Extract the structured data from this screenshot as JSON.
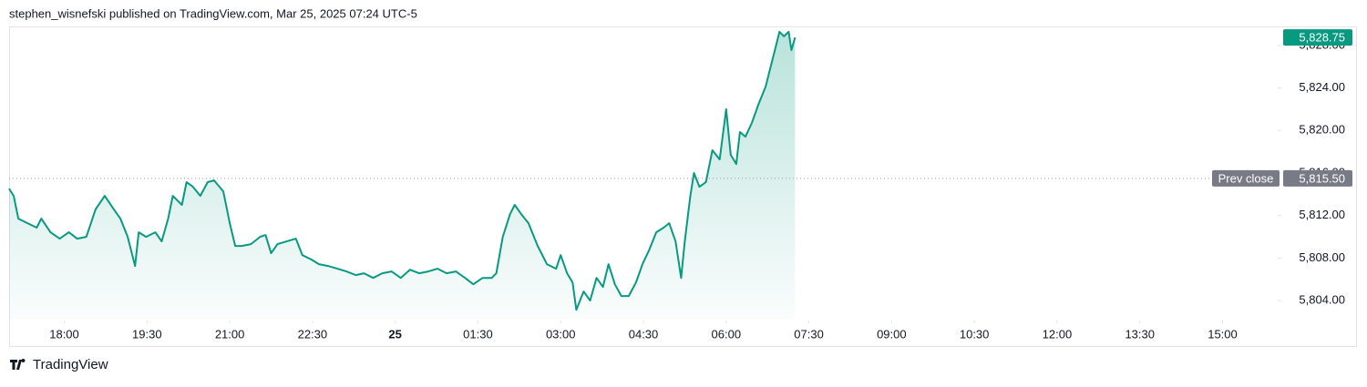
{
  "header": "stephen_wisnefski published on TradingView.com, Mar 25, 2025 07:24 UTC-5",
  "footer": "TradingView",
  "chart_data": {
    "type": "line",
    "color": "#089981",
    "grid": false,
    "xlim": [
      1020,
      2398
    ],
    "ylim": [
      5802.3,
      5829.7
    ],
    "xticks": [
      {
        "value": 1080,
        "label": "18:00"
      },
      {
        "value": 1170,
        "label": "19:30"
      },
      {
        "value": 1260,
        "label": "21:00"
      },
      {
        "value": 1350,
        "label": "22:30"
      },
      {
        "value": 1440,
        "label": "25",
        "bold": true
      },
      {
        "value": 1530,
        "label": "01:30"
      },
      {
        "value": 1620,
        "label": "03:00"
      },
      {
        "value": 1710,
        "label": "04:30"
      },
      {
        "value": 1800,
        "label": "06:00"
      },
      {
        "value": 1890,
        "label": "07:30"
      },
      {
        "value": 1980,
        "label": "09:00"
      },
      {
        "value": 2070,
        "label": "10:30"
      },
      {
        "value": 2160,
        "label": "12:00"
      },
      {
        "value": 2250,
        "label": "13:30"
      },
      {
        "value": 2340,
        "label": "15:00"
      }
    ],
    "yticks": [
      {
        "value": 5804,
        "label": "5,804.00"
      },
      {
        "value": 5808,
        "label": "5,808.00"
      },
      {
        "value": 5812,
        "label": "5,812.00"
      },
      {
        "value": 5816,
        "label": "5,816.00"
      },
      {
        "value": 5820,
        "label": "5,820.00"
      },
      {
        "value": 5824,
        "label": "5,824.00"
      },
      {
        "value": 5828,
        "label": "5,828.00"
      }
    ],
    "prev_close": {
      "name": "Prev close",
      "value": 5815.5,
      "label": "5,815.50"
    },
    "last_price": {
      "value": 5828.75,
      "label": "5,828.75"
    },
    "series": [
      {
        "x": [
          1020,
          1025,
          1030,
          1040,
          1050,
          1055,
          1065,
          1075,
          1085,
          1094,
          1104,
          1109,
          1114,
          1124,
          1134,
          1141,
          1149,
          1157,
          1161,
          1169,
          1179,
          1186,
          1193,
          1198,
          1208,
          1213,
          1220,
          1228,
          1236,
          1243,
          1253,
          1260,
          1266,
          1273,
          1283,
          1293,
          1299,
          1305,
          1312,
          1322,
          1332,
          1339,
          1349,
          1357,
          1367,
          1377,
          1387,
          1397,
          1406,
          1416,
          1426,
          1436,
          1446,
          1456,
          1466,
          1476,
          1486,
          1496,
          1506,
          1516,
          1525,
          1535,
          1545,
          1550,
          1557,
          1565,
          1570,
          1577,
          1585,
          1595,
          1605,
          1615,
          1620,
          1627,
          1633,
          1637,
          1645,
          1652,
          1659,
          1666,
          1672,
          1679,
          1686,
          1694,
          1702,
          1709,
          1716,
          1724,
          1732,
          1738,
          1745,
          1751,
          1755,
          1761,
          1765,
          1771,
          1778,
          1785,
          1793,
          1800,
          1805,
          1811,
          1815,
          1821,
          1828,
          1835,
          1843,
          1848,
          1853,
          1858,
          1863,
          1868,
          1871,
          1875
        ],
        "values": [
          5814.54,
          5813.85,
          5811.71,
          5811.28,
          5810.86,
          5811.71,
          5810.43,
          5809.83,
          5810.43,
          5809.83,
          5810.0,
          5811.28,
          5812.57,
          5813.85,
          5812.57,
          5811.71,
          5810.0,
          5807.26,
          5810.43,
          5810.0,
          5810.43,
          5809.57,
          5811.71,
          5813.85,
          5813.0,
          5815.14,
          5814.71,
          5813.85,
          5815.14,
          5815.31,
          5814.28,
          5811.28,
          5809.14,
          5809.14,
          5809.31,
          5810.0,
          5810.17,
          5808.46,
          5809.31,
          5809.57,
          5809.83,
          5808.28,
          5807.86,
          5807.43,
          5807.26,
          5807.0,
          5806.74,
          5806.4,
          5806.57,
          5806.14,
          5806.57,
          5806.74,
          5806.14,
          5806.91,
          5806.57,
          5806.74,
          5807.0,
          5806.57,
          5806.74,
          5806.14,
          5805.54,
          5806.14,
          5806.14,
          5806.57,
          5810.0,
          5812.14,
          5813.0,
          5812.14,
          5811.28,
          5809.14,
          5807.43,
          5807.0,
          5808.28,
          5806.57,
          5805.71,
          5803.14,
          5804.86,
          5804.0,
          5806.14,
          5805.29,
          5807.43,
          5805.54,
          5804.43,
          5804.43,
          5805.71,
          5807.43,
          5808.71,
          5810.43,
          5810.86,
          5811.28,
          5809.57,
          5806.14,
          5809.57,
          5813.85,
          5816.0,
          5814.71,
          5815.14,
          5818.14,
          5817.28,
          5822.0,
          5817.71,
          5816.85,
          5819.85,
          5819.42,
          5820.71,
          5822.42,
          5824.14,
          5825.85,
          5827.56,
          5829.28,
          5828.85,
          5829.28,
          5827.56,
          5828.75
        ]
      }
    ]
  }
}
